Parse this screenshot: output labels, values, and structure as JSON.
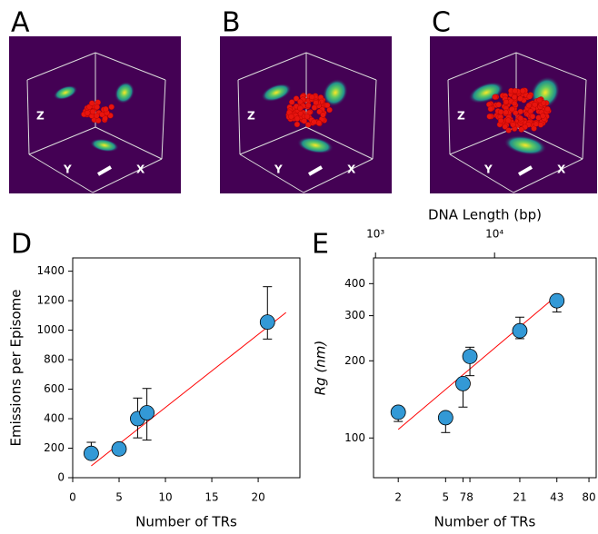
{
  "renders": [
    {
      "label": "A",
      "axis_labels": [
        "Z",
        "Y",
        "X"
      ]
    },
    {
      "label": "B",
      "axis_labels": [
        "Z",
        "Y",
        "X"
      ]
    },
    {
      "label": "C",
      "axis_labels": [
        "Z",
        "Y",
        "X"
      ]
    }
  ],
  "chart_data": [
    {
      "type": "scatter",
      "label": "D",
      "xlabel": "Number of TRs",
      "ylabel": "Emissions per Episome",
      "x": [
        2,
        5,
        7,
        8,
        21
      ],
      "series": [
        {
          "color": "#3399d6",
          "values": [
            165,
            195,
            400,
            440,
            1055
          ],
          "error_low": [
            40,
            10,
            130,
            185,
            115
          ],
          "error_high": [
            75,
            10,
            140,
            165,
            240
          ]
        }
      ],
      "fit": {
        "color": "#ff0000",
        "x": [
          2,
          23
        ],
        "values": [
          80,
          1120
        ]
      },
      "xlim": [
        0,
        24.5
      ],
      "ylim": [
        0,
        1490
      ],
      "xticks": [
        0,
        5,
        10,
        15,
        20
      ],
      "yticks": [
        0,
        200,
        400,
        600,
        800,
        1000,
        1200,
        1400
      ]
    },
    {
      "type": "scatter",
      "label": "E",
      "xlabel": "Number of TRs",
      "ylabel": "Rg (nm)",
      "x2label": "DNA Length (bp)",
      "log_x": true,
      "log_y": true,
      "x": [
        2,
        5,
        7,
        8,
        21,
        43
      ],
      "series": [
        {
          "color": "#3399d6",
          "values": [
            126,
            120,
            163,
            208,
            262,
            343
          ],
          "error_low": [
            10,
            15,
            31,
            33,
            18,
            33
          ],
          "error_high": [
            5,
            5,
            5,
            18,
            34,
            5
          ]
        }
      ],
      "fit": {
        "color": "#ff0000",
        "x": [
          2,
          45
        ],
        "values": [
          108,
          366
        ]
      },
      "xlim": [
        1.24,
        92
      ],
      "ylim": [
        70,
        504
      ],
      "x2lim": [
        962,
        71400
      ],
      "xticks": [
        2,
        5,
        7,
        8,
        21,
        43,
        80
      ],
      "yticks": [
        100,
        200,
        300,
        400
      ],
      "x2ticks": [
        {
          "value": 1000,
          "label": "10³"
        },
        {
          "value": 10000,
          "label": "10⁴"
        }
      ]
    }
  ]
}
